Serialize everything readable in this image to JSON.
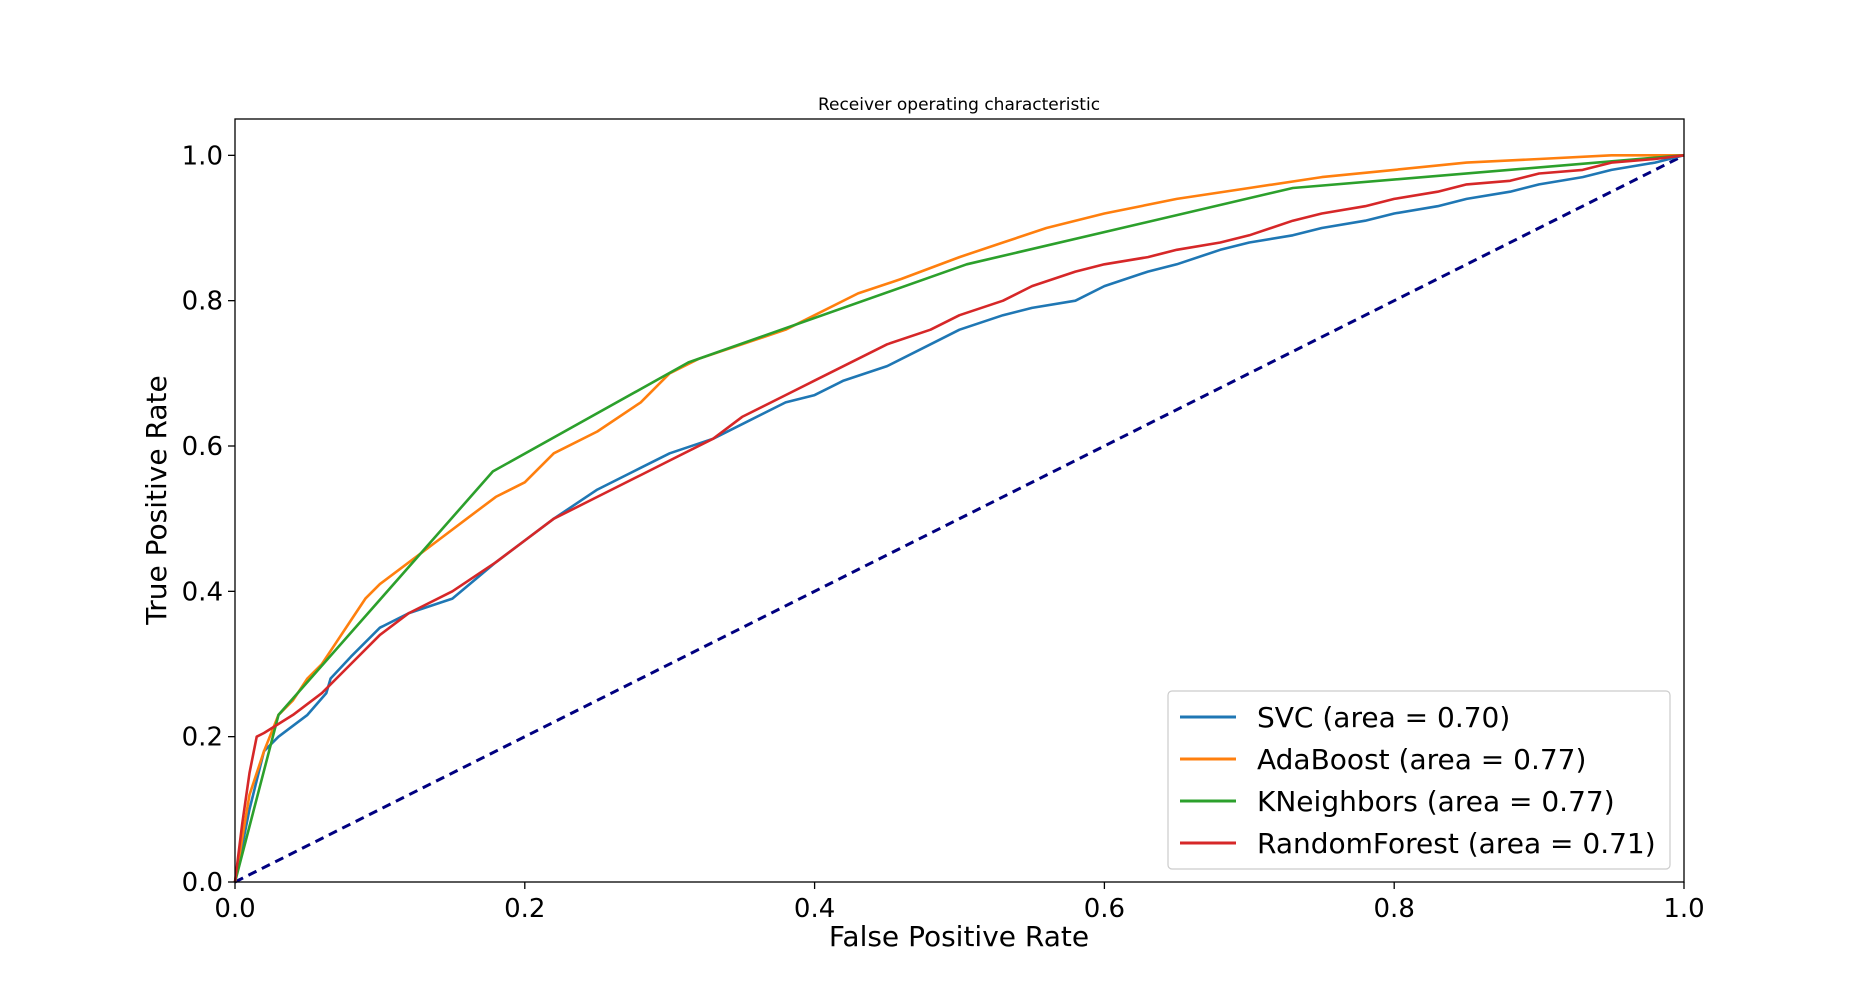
{
  "chart_data": {
    "type": "line",
    "title": "Receiver operating characteristic",
    "xlabel": "False Positive Rate",
    "ylabel": "True Positive Rate",
    "xlim": [
      0.0,
      1.0
    ],
    "ylim": [
      0.0,
      1.05
    ],
    "xticks": [
      "0.0",
      "0.2",
      "0.4",
      "0.6",
      "0.8",
      "1.0"
    ],
    "yticks": [
      "0.0",
      "0.2",
      "0.4",
      "0.6",
      "0.8",
      "1.0"
    ],
    "grid": false,
    "legend_position": "lower-right",
    "series": [
      {
        "name": "SVC (area = 0.70)",
        "color": "#1f77b4",
        "x": [
          0.0,
          0.01,
          0.02,
          0.03,
          0.05,
          0.063,
          0.066,
          0.08,
          0.1,
          0.12,
          0.15,
          0.18,
          0.2,
          0.22,
          0.25,
          0.28,
          0.3,
          0.33,
          0.35,
          0.38,
          0.4,
          0.42,
          0.45,
          0.48,
          0.5,
          0.53,
          0.55,
          0.58,
          0.6,
          0.63,
          0.65,
          0.68,
          0.7,
          0.73,
          0.75,
          0.78,
          0.8,
          0.83,
          0.85,
          0.88,
          0.9,
          0.93,
          0.95,
          0.98,
          1.0
        ],
        "y": [
          0.0,
          0.1,
          0.18,
          0.2,
          0.23,
          0.26,
          0.28,
          0.31,
          0.35,
          0.37,
          0.39,
          0.44,
          0.47,
          0.5,
          0.54,
          0.57,
          0.59,
          0.61,
          0.63,
          0.66,
          0.67,
          0.69,
          0.71,
          0.74,
          0.76,
          0.78,
          0.79,
          0.8,
          0.82,
          0.84,
          0.85,
          0.87,
          0.88,
          0.89,
          0.9,
          0.91,
          0.92,
          0.93,
          0.94,
          0.95,
          0.96,
          0.97,
          0.98,
          0.99,
          1.0
        ]
      },
      {
        "name": "AdaBoost (area = 0.77)",
        "color": "#ff7f0e",
        "x": [
          0.0,
          0.005,
          0.01,
          0.02,
          0.03,
          0.04,
          0.05,
          0.06,
          0.07,
          0.08,
          0.09,
          0.1,
          0.12,
          0.14,
          0.16,
          0.18,
          0.2,
          0.22,
          0.25,
          0.28,
          0.3,
          0.32,
          0.35,
          0.38,
          0.4,
          0.43,
          0.46,
          0.5,
          0.53,
          0.56,
          0.6,
          0.65,
          0.7,
          0.75,
          0.8,
          0.85,
          0.9,
          0.95,
          1.0
        ],
        "y": [
          0.0,
          0.06,
          0.12,
          0.18,
          0.23,
          0.25,
          0.28,
          0.3,
          0.33,
          0.36,
          0.39,
          0.41,
          0.44,
          0.47,
          0.5,
          0.53,
          0.55,
          0.59,
          0.62,
          0.66,
          0.7,
          0.72,
          0.74,
          0.76,
          0.78,
          0.81,
          0.83,
          0.86,
          0.88,
          0.9,
          0.92,
          0.94,
          0.955,
          0.97,
          0.98,
          0.99,
          0.995,
          1.0,
          1.0
        ]
      },
      {
        "name": "KNeighbors (area = 0.77)",
        "color": "#2ca02c",
        "x": [
          0.0,
          0.03,
          0.178,
          0.313,
          0.505,
          0.73,
          1.0
        ],
        "y": [
          0.0,
          0.23,
          0.565,
          0.715,
          0.85,
          0.955,
          1.0
        ]
      },
      {
        "name": "RandomForest (area = 0.71)",
        "color": "#d62728",
        "x": [
          0.0,
          0.005,
          0.01,
          0.015,
          0.02,
          0.04,
          0.06,
          0.08,
          0.1,
          0.12,
          0.15,
          0.18,
          0.2,
          0.22,
          0.25,
          0.28,
          0.3,
          0.33,
          0.35,
          0.38,
          0.4,
          0.43,
          0.45,
          0.48,
          0.5,
          0.53,
          0.55,
          0.58,
          0.6,
          0.63,
          0.65,
          0.68,
          0.7,
          0.73,
          0.75,
          0.78,
          0.8,
          0.83,
          0.85,
          0.88,
          0.9,
          0.93,
          0.95,
          0.98,
          1.0
        ],
        "y": [
          0.0,
          0.08,
          0.15,
          0.2,
          0.205,
          0.23,
          0.26,
          0.3,
          0.34,
          0.37,
          0.4,
          0.44,
          0.47,
          0.5,
          0.53,
          0.56,
          0.58,
          0.61,
          0.64,
          0.67,
          0.69,
          0.72,
          0.74,
          0.76,
          0.78,
          0.8,
          0.82,
          0.84,
          0.85,
          0.86,
          0.87,
          0.88,
          0.89,
          0.91,
          0.92,
          0.93,
          0.94,
          0.95,
          0.96,
          0.965,
          0.975,
          0.98,
          0.99,
          0.995,
          1.0
        ]
      }
    ],
    "reference_line": {
      "color": "#000080",
      "style": "dashed",
      "x": [
        0.0,
        1.0
      ],
      "y": [
        0.0,
        1.0
      ]
    }
  }
}
